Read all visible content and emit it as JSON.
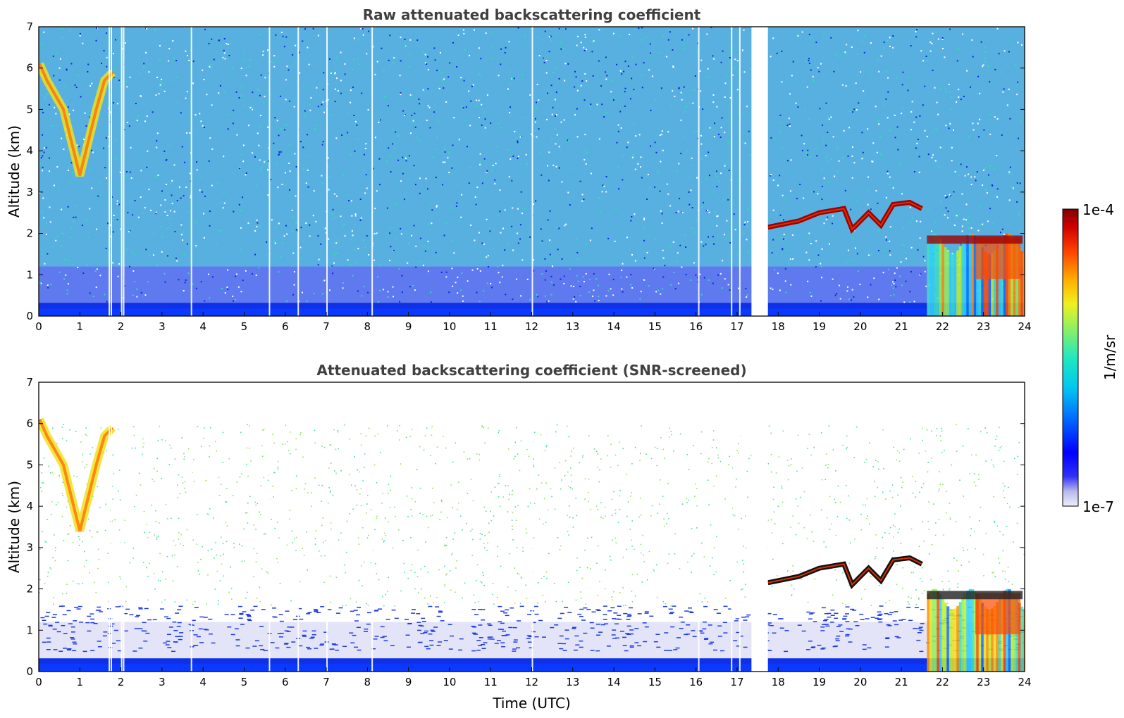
{
  "chart_data": [
    {
      "type": "heatmap",
      "title": "Raw attenuated backscattering coefficient",
      "xlabel": "",
      "ylabel": "Altitude (km)",
      "xlim": [
        0,
        24
      ],
      "ylim": [
        0,
        7
      ],
      "x_ticks": [
        0,
        1,
        2,
        3,
        4,
        5,
        6,
        7,
        8,
        9,
        10,
        11,
        12,
        13,
        14,
        15,
        16,
        17,
        18,
        19,
        20,
        21,
        22,
        23,
        24
      ],
      "y_ticks": [
        0,
        1,
        2,
        3,
        4,
        5,
        6,
        7
      ],
      "data_gap": [
        17.35,
        17.75
      ],
      "features": [
        {
          "label": "ice cloud streak",
          "x": [
            0.0,
            1.9
          ],
          "y": [
            3.0,
            6.3
          ]
        },
        {
          "label": "cloud layer",
          "x": [
            17.75,
            21.5
          ],
          "y": [
            1.9,
            2.8
          ]
        },
        {
          "label": "low cloud with precipitation",
          "x": [
            21.6,
            24.0
          ],
          "y": [
            0.0,
            2.1
          ]
        },
        {
          "label": "boundary layer aerosol",
          "x": [
            0,
            24
          ],
          "y": [
            0.0,
            0.3
          ]
        }
      ]
    },
    {
      "type": "heatmap",
      "title": "Attenuated backscattering coefficient (SNR-screened)",
      "xlabel": "Time (UTC)",
      "ylabel": "Altitude (km)",
      "xlim": [
        0,
        24
      ],
      "ylim": [
        0,
        7
      ],
      "x_ticks": [
        0,
        1,
        2,
        3,
        4,
        5,
        6,
        7,
        8,
        9,
        10,
        11,
        12,
        13,
        14,
        15,
        16,
        17,
        18,
        19,
        20,
        21,
        22,
        23,
        24
      ],
      "y_ticks": [
        0,
        1,
        2,
        3,
        4,
        5,
        6,
        7
      ],
      "data_gap": [
        17.35,
        17.75
      ]
    }
  ],
  "colorbar": {
    "label": "1/m/sr",
    "max_label": "1e-4",
    "min_label": "1e-7",
    "scale": "log",
    "colormap": [
      "#e6e6f8",
      "#c8c8f0",
      "#8a8ae8",
      "#0000ff",
      "#0060ff",
      "#00a8ff",
      "#00dcdc",
      "#40f0a0",
      "#b0f040",
      "#fff000",
      "#ffa000",
      "#ff4000",
      "#c00000",
      "#800000"
    ]
  }
}
